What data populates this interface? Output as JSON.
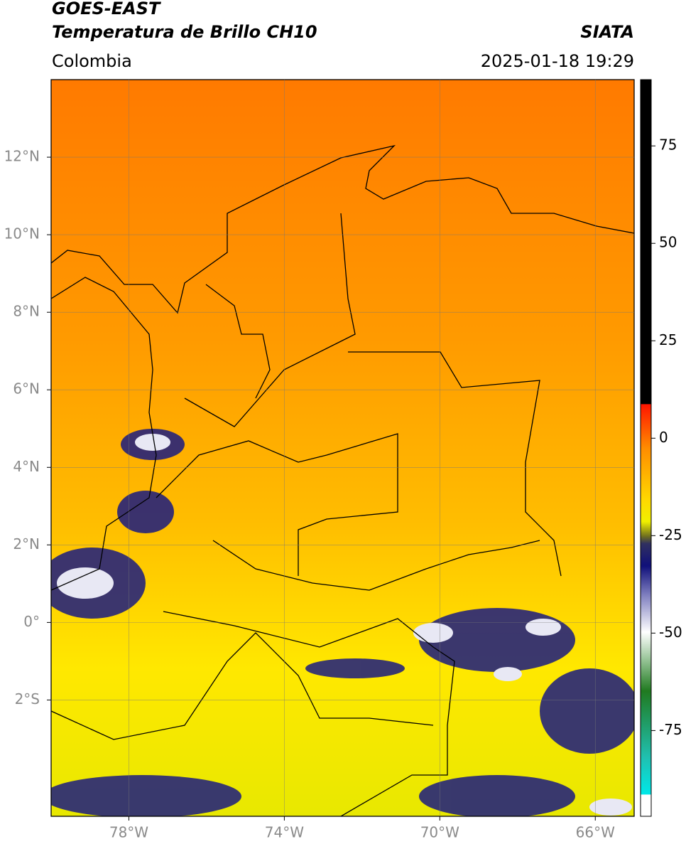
{
  "header": {
    "title_line1": "GOES-EAST",
    "title_line2": "Temperatura de Brillo CH10",
    "source": "SIATA",
    "region": "Colombia",
    "datetime": "2025-01-18 19:29"
  },
  "map": {
    "xlim": [
      -80,
      -65
    ],
    "ylim": [
      -5,
      14
    ],
    "xticks": [
      {
        "value": -78,
        "label": "78°W"
      },
      {
        "value": -74,
        "label": "74°W"
      },
      {
        "value": -70,
        "label": "70°W"
      },
      {
        "value": -66,
        "label": "66°W"
      }
    ],
    "yticks": [
      {
        "value": 12,
        "label": "12°N"
      },
      {
        "value": 10,
        "label": "10°N"
      },
      {
        "value": 8,
        "label": "8°N"
      },
      {
        "value": 6,
        "label": "6°N"
      },
      {
        "value": 4,
        "label": "4°N"
      },
      {
        "value": 2,
        "label": "2°N"
      },
      {
        "value": 0,
        "label": "0°"
      },
      {
        "value": -2,
        "label": "2°S"
      }
    ]
  },
  "colorbar": {
    "lim": [
      -97,
      92
    ],
    "ticks": [
      75,
      50,
      25,
      0,
      -25,
      -50,
      -75
    ]
  }
}
